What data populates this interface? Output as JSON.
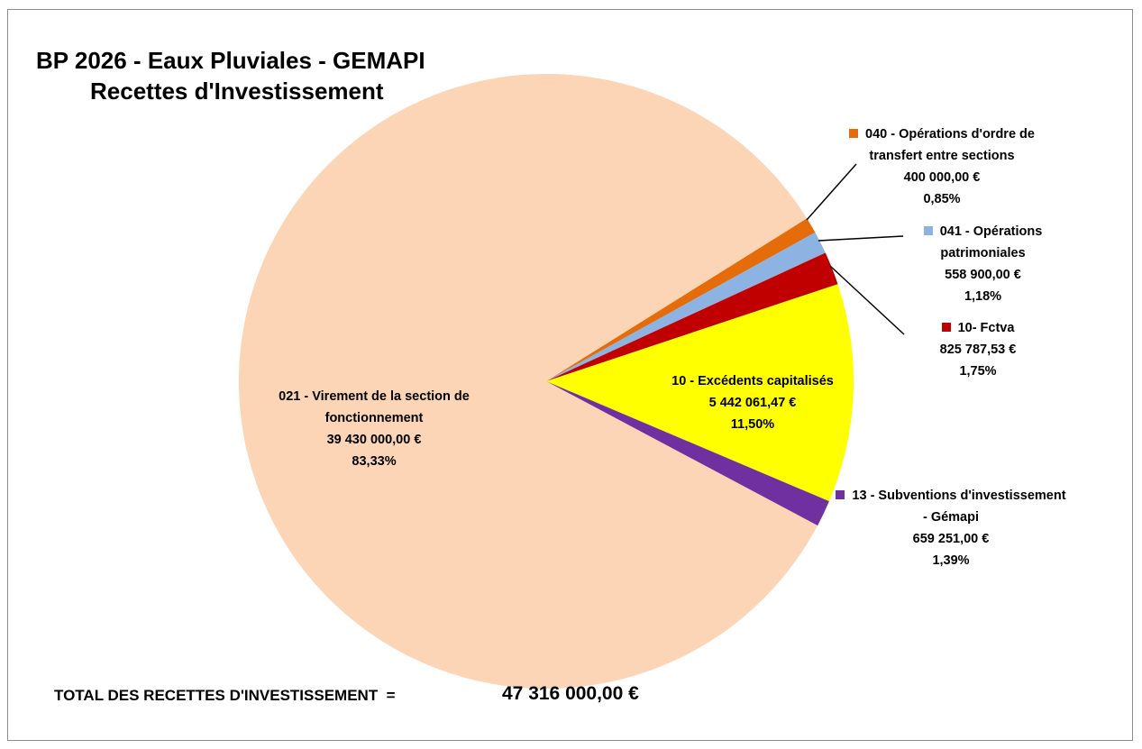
{
  "chart_data": {
    "type": "pie",
    "title": "BP 2026 - Eaux Pluviales - GEMAPI",
    "subtitle": "Recettes d'Investissement",
    "categories": [
      "040 - Opérations d'ordre de transfert entre sections",
      "041 - Opérations patrimoniales",
      "10- Fctva",
      "10 - Excédents capitalisés",
      "13 - Subventions d'investissement - Gémapi",
      "021 - Virement de la section de fonctionnement"
    ],
    "values": [
      400000,
      558900,
      825787.53,
      5442061.47,
      659251,
      39430000
    ],
    "value_labels": [
      "400 000,00 €",
      "558 900,00 €",
      "825 787,53 €",
      "5 442 061,47 €",
      "659 251,00 €",
      "39 430 000,00 €"
    ],
    "percent_labels": [
      "0,85%",
      "1,18%",
      "1,75%",
      "11,50%",
      "1,39%",
      "83,33%"
    ],
    "colors": [
      "#e46c0a",
      "#8db3e2",
      "#c00000",
      "#ffff00",
      "#7030a0",
      "#fbd5b5"
    ],
    "total_label": "TOTAL DES RECETTES D'INVESTISSEMENT  =",
    "total_value": 47316000,
    "total_value_label": "47 316 000,00 €"
  }
}
